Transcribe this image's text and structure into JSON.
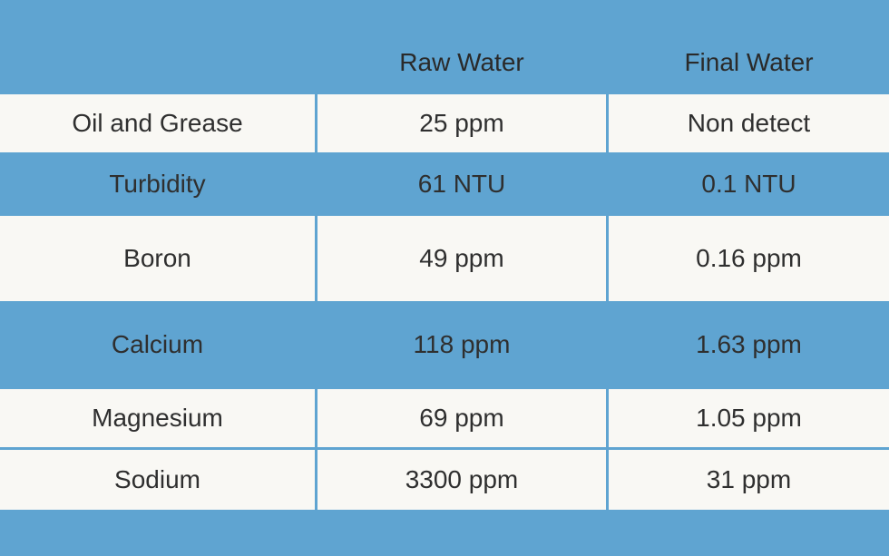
{
  "table": {
    "header": [
      "Raw Water",
      "Final Water"
    ],
    "rows": [
      [
        "Oil and Grease",
        "25 ppm",
        "Non detect"
      ],
      [
        "Turbidity",
        "61 NTU",
        "0.1 NTU"
      ],
      [
        "Boron",
        "49 ppm",
        "0.16 ppm"
      ],
      [
        "Calcium",
        "118 ppm",
        "1.63 ppm"
      ],
      [
        "Magnesium",
        "69 ppm",
        "1.05 ppm"
      ],
      [
        "Sodium",
        "3300 ppm",
        "31 ppm"
      ]
    ]
  }
}
